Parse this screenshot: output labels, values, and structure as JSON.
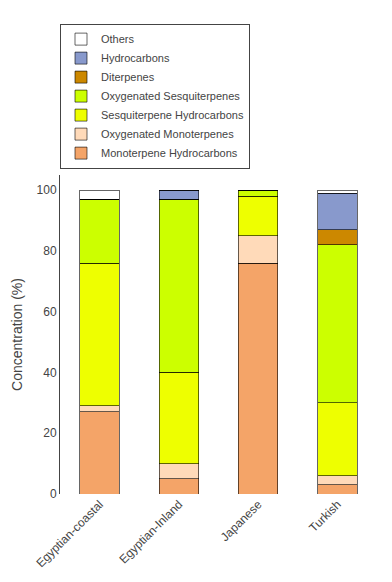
{
  "chart_data": {
    "type": "bar",
    "categories": [
      "Egyptian-coastal",
      "Egyptian-Inland",
      "Japanese",
      "Turkish"
    ],
    "series": [
      {
        "name": "Monoterpene Hydrocarbons",
        "color": "#F4A468",
        "values": [
          27,
          5,
          76,
          3
        ]
      },
      {
        "name": "Oxygenated Monoterpenes",
        "color": "#FFDAB9",
        "values": [
          2,
          5,
          9,
          3
        ]
      },
      {
        "name": "Sesquiterpene Hydrocarbons",
        "color": "#EEFF00",
        "values": [
          47,
          30,
          13,
          24
        ]
      },
      {
        "name": "Oxygenated Sesquiterpenes",
        "color": "#CCFF00",
        "values": [
          21,
          57,
          2,
          52
        ]
      },
      {
        "name": "Diterpenes",
        "color": "#CC8800",
        "values": [
          0,
          0,
          0,
          5
        ]
      },
      {
        "name": "Hydrocarbons",
        "color": "#8899CC",
        "values": [
          0,
          3,
          0,
          12
        ]
      },
      {
        "name": "Others",
        "color": "#FFFFFF",
        "values": [
          3,
          0,
          0,
          1
        ]
      }
    ],
    "ylabel": "Concentration (%)",
    "ylim": [
      0,
      105
    ],
    "yticks": [
      0,
      20,
      40,
      60,
      80,
      100
    ],
    "stacked": true,
    "grid": false,
    "legend": "top"
  }
}
